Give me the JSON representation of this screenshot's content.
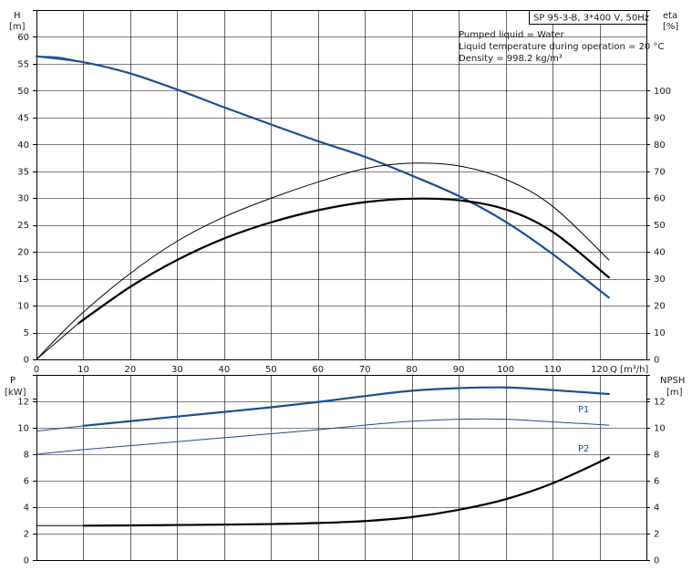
{
  "chart_data": [
    {
      "type": "line",
      "id": "upper",
      "title_box": "SP 95-3-B, 3*400 V, 50Hz",
      "annotations": [
        "Pumped liquid = Water",
        "Liquid temperature during operation = 20 °C",
        "Density = 998.2 kg/m³"
      ],
      "xlabel": "Q [m³/h]",
      "y_left_label": [
        "H",
        "[m]"
      ],
      "y_right_label": [
        "eta",
        "[%]"
      ],
      "xlim": [
        0,
        130
      ],
      "xticks": [
        0,
        10,
        20,
        30,
        40,
        50,
        60,
        70,
        80,
        90,
        100,
        110,
        120
      ],
      "y_left_lim": [
        0,
        65
      ],
      "y_left_ticks": [
        0,
        5,
        10,
        15,
        20,
        25,
        30,
        35,
        40,
        45,
        50,
        55,
        60
      ],
      "y_right_lim": [
        0,
        130
      ],
      "y_right_ticks": [
        0,
        10,
        20,
        30,
        40,
        50,
        60,
        70,
        80,
        90,
        100
      ],
      "grid": true,
      "series": [
        {
          "axis": "left",
          "color": "#1f4e8c",
          "width": 2.2,
          "x": [
            0,
            10,
            20,
            30,
            40,
            50,
            60,
            70,
            80,
            90,
            100,
            110,
            122
          ],
          "y": [
            56.4,
            55.3,
            53.2,
            50.2,
            46.9,
            43.7,
            40.6,
            37.7,
            34.2,
            30.4,
            25.6,
            19.6,
            11.5
          ]
        },
        {
          "axis": "left",
          "color": "#1f4e8c",
          "width": 1,
          "x": [
            0,
            5,
            10
          ],
          "y": [
            56.4,
            56.2,
            55.3
          ]
        },
        {
          "axis": "right",
          "color": "#000000",
          "width": 2.2,
          "x": [
            9,
            20,
            30,
            40,
            50,
            60,
            70,
            80,
            90,
            100,
            110,
            122
          ],
          "y": [
            13.5,
            27,
            37,
            45,
            51,
            55.5,
            58.5,
            59.8,
            59.2,
            55.8,
            47.5,
            30.5
          ]
        },
        {
          "axis": "right",
          "color": "#000000",
          "width": 1,
          "x": [
            0,
            9
          ],
          "y": [
            0,
            13.5
          ]
        },
        {
          "axis": "right",
          "color": "#000000",
          "width": 1,
          "x": [
            0,
            9,
            20,
            30,
            40,
            50,
            60,
            70,
            80,
            90,
            100,
            110,
            122
          ],
          "y": [
            0,
            16,
            32,
            44,
            53,
            60,
            66,
            71,
            73,
            72,
            67,
            57,
            37
          ]
        }
      ]
    },
    {
      "type": "line",
      "id": "lower",
      "y_left_label": [
        "P",
        "[kW]"
      ],
      "y_right_label": [
        "NPSH",
        "[m]"
      ],
      "xlim": [
        0,
        130
      ],
      "y_left_lim": [
        0,
        14
      ],
      "y_left_ticks": [
        0,
        2,
        4,
        6,
        8,
        10,
        12
      ],
      "y_right_lim": [
        0,
        14
      ],
      "y_right_ticks": [
        0,
        2,
        4,
        6,
        8,
        10,
        12
      ],
      "grid": true,
      "series": [
        {
          "name": "P1",
          "axis": "left",
          "color": "#1f4e8c",
          "width": 2.2,
          "x": [
            10,
            20,
            30,
            40,
            50,
            60,
            70,
            80,
            90,
            100,
            110,
            122
          ],
          "y": [
            10.15,
            10.5,
            10.85,
            11.2,
            11.55,
            11.95,
            12.4,
            12.8,
            13.0,
            13.05,
            12.85,
            12.55
          ]
        },
        {
          "axis": "left",
          "color": "#1f4e8c",
          "width": 1,
          "x": [
            0,
            10
          ],
          "y": [
            9.75,
            10.15
          ]
        },
        {
          "name": "P2",
          "axis": "left",
          "color": "#1f4e8c",
          "width": 1,
          "x": [
            0,
            10,
            20,
            30,
            40,
            50,
            60,
            70,
            80,
            90,
            100,
            110,
            122
          ],
          "y": [
            8.0,
            8.35,
            8.65,
            8.95,
            9.25,
            9.55,
            9.85,
            10.2,
            10.5,
            10.65,
            10.65,
            10.45,
            10.2
          ]
        },
        {
          "axis": "right",
          "color": "#000000",
          "width": 2.2,
          "x": [
            10,
            20,
            30,
            40,
            50,
            60,
            70,
            80,
            90,
            100,
            110,
            122
          ],
          "y": [
            2.6,
            2.62,
            2.65,
            2.68,
            2.72,
            2.8,
            2.95,
            3.25,
            3.8,
            4.6,
            5.8,
            7.75
          ]
        },
        {
          "axis": "right",
          "color": "#000000",
          "width": 1,
          "x": [
            0,
            10
          ],
          "y": [
            2.6,
            2.6
          ]
        }
      ]
    }
  ]
}
